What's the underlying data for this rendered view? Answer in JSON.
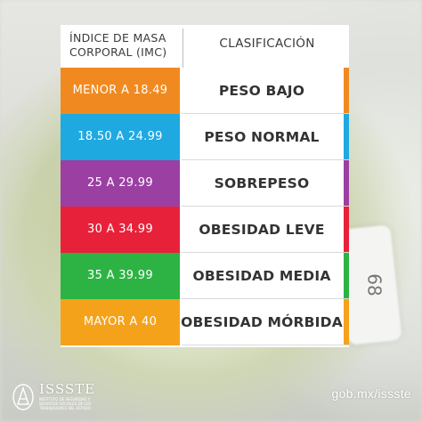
{
  "header": {
    "left": "ÍNDICE DE MASA CORPORAL (IMC)",
    "right": "CLASIFICACIÓN"
  },
  "rows": [
    {
      "range": "MENOR A 18.49",
      "label": "PESO BAJO",
      "color": "#f08a20"
    },
    {
      "range": "18.50 A 24.99",
      "label": "PESO NORMAL",
      "color": "#1fa9e1"
    },
    {
      "range": "25 A 29.99",
      "label": "SOBREPESO",
      "color": "#9b3fa3"
    },
    {
      "range": "30 A 34.99",
      "label": "OBESIDAD LEVE",
      "color": "#e8213a"
    },
    {
      "range": "35 A 39.99",
      "label": "OBESIDAD MEDIA",
      "color": "#2db344"
    },
    {
      "range": "MAYOR A 40",
      "label": "OBESIDAD MÓRBIDA",
      "color": "#f5a21b"
    }
  ],
  "footer": {
    "brand": "ISSSTE",
    "brand_sub": "INSTITUTO DE SEGURIDAD Y SERVICIOS SOCIALES DE LOS TRABAJADORES DEL ESTADO",
    "url": "gob.mx/issste"
  },
  "icons": {
    "logo": "issste-logo-icon"
  }
}
